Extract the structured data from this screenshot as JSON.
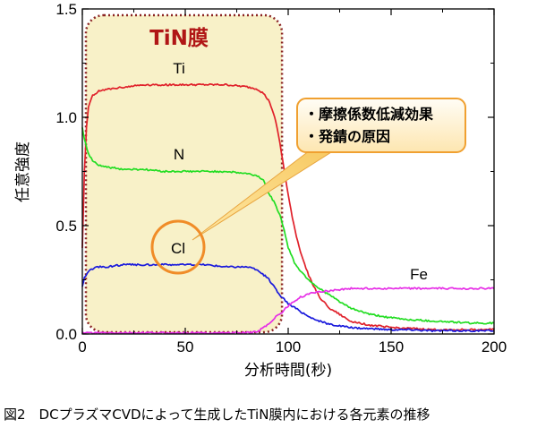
{
  "chart_data": {
    "type": "line",
    "title": "",
    "xlabel": "分析時間(秒)",
    "ylabel": "任意強度",
    "xlim": [
      0,
      200
    ],
    "ylim": [
      0,
      1.5
    ],
    "xticks": [
      0,
      50,
      100,
      150,
      200
    ],
    "yticks": [
      0.0,
      0.5,
      1.0,
      1.5
    ],
    "xtick_labels": [
      "0",
      "50",
      "100",
      "150",
      "200"
    ],
    "ytick_labels": [
      "0.0",
      "0.5",
      "1.0",
      "1.5"
    ],
    "grid": false,
    "series": [
      {
        "name": "Ti",
        "color": "#e0202a",
        "x": [
          0,
          1,
          2,
          3,
          5,
          8,
          12,
          20,
          30,
          40,
          50,
          60,
          70,
          80,
          85,
          88,
          91,
          94,
          96,
          98,
          100,
          102,
          104,
          106,
          108,
          110,
          113,
          116,
          120,
          125,
          130,
          140,
          150,
          160,
          170,
          180,
          190,
          200
        ],
        "y": [
          0.4,
          0.75,
          0.95,
          1.05,
          1.1,
          1.12,
          1.13,
          1.14,
          1.15,
          1.15,
          1.15,
          1.15,
          1.15,
          1.14,
          1.13,
          1.11,
          1.07,
          0.98,
          0.88,
          0.76,
          0.64,
          0.54,
          0.45,
          0.38,
          0.32,
          0.27,
          0.21,
          0.16,
          0.12,
          0.09,
          0.06,
          0.04,
          0.03,
          0.025,
          0.02,
          0.02,
          0.02,
          0.02
        ]
      },
      {
        "name": "N",
        "color": "#22dd22",
        "x": [
          0,
          1,
          3,
          5,
          8,
          12,
          20,
          30,
          40,
          50,
          60,
          70,
          80,
          85,
          88,
          90,
          93,
          96,
          98,
          100,
          103,
          106,
          110,
          115,
          120,
          125,
          130,
          140,
          150,
          160,
          170,
          180,
          190,
          200
        ],
        "y": [
          0.95,
          0.9,
          0.83,
          0.8,
          0.78,
          0.77,
          0.76,
          0.76,
          0.75,
          0.75,
          0.75,
          0.75,
          0.74,
          0.73,
          0.71,
          0.66,
          0.61,
          0.55,
          0.48,
          0.4,
          0.33,
          0.29,
          0.25,
          0.21,
          0.18,
          0.15,
          0.12,
          0.09,
          0.075,
          0.065,
          0.06,
          0.055,
          0.05,
          0.05
        ]
      },
      {
        "name": "Cl",
        "color": "#1a1adc",
        "x": [
          0,
          1,
          3,
          5,
          8,
          12,
          20,
          30,
          40,
          50,
          60,
          70,
          80,
          84,
          87,
          90,
          93,
          96,
          100,
          105,
          110,
          115,
          120,
          130,
          140,
          150,
          160,
          170,
          180,
          190,
          200
        ],
        "y": [
          0.22,
          0.26,
          0.29,
          0.3,
          0.31,
          0.31,
          0.32,
          0.32,
          0.32,
          0.32,
          0.32,
          0.31,
          0.31,
          0.3,
          0.28,
          0.26,
          0.22,
          0.18,
          0.14,
          0.11,
          0.08,
          0.06,
          0.045,
          0.03,
          0.025,
          0.02,
          0.02,
          0.015,
          0.015,
          0.015,
          0.015
        ]
      },
      {
        "name": "Fe",
        "color": "#e62ee6",
        "x": [
          0,
          20,
          40,
          60,
          80,
          85,
          88,
          91,
          94,
          97,
          100,
          103,
          106,
          110,
          115,
          120,
          125,
          130,
          140,
          150,
          160,
          170,
          180,
          190,
          200
        ],
        "y": [
          0.005,
          0.005,
          0.005,
          0.005,
          0.006,
          0.01,
          0.03,
          0.05,
          0.08,
          0.1,
          0.13,
          0.15,
          0.17,
          0.185,
          0.195,
          0.2,
          0.205,
          0.21,
          0.21,
          0.21,
          0.21,
          0.21,
          0.21,
          0.21,
          0.21
        ]
      }
    ]
  },
  "annotations": {
    "region_label": "TiN膜",
    "region_x": [
      0,
      97
    ],
    "callout_lines": [
      "・摩擦係数低減効果",
      "・発錆の原因"
    ]
  },
  "colors": {
    "region_fill": "#f8f1c8",
    "region_border": "#8b2424",
    "callout_border": "#f0a030",
    "highlight_circle": "#f08c28"
  },
  "caption": "図2　DCプラズマCVDによって生成したTiN膜内における各元素の推移"
}
